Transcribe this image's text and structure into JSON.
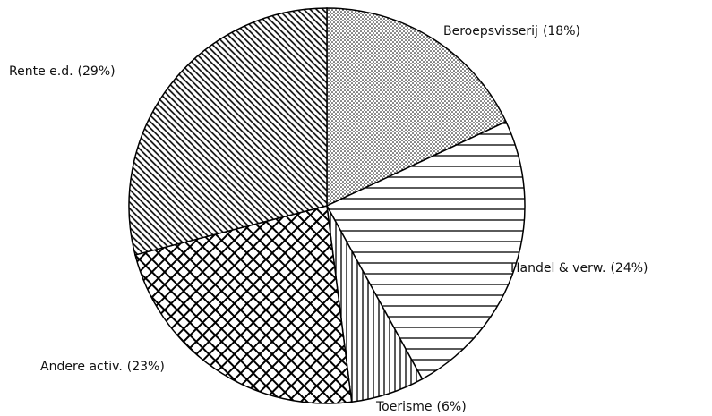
{
  "chart_data": {
    "type": "pie",
    "categories": [
      "Beroepsvisserij",
      "Handel & verw.",
      "Toerisme",
      "Andere activ.",
      "Rente e.d."
    ],
    "values": [
      18,
      24,
      6,
      23,
      29
    ],
    "value_labels": [
      "(18%)",
      "(24%)",
      "(6%)",
      "(23%)",
      "(29%)"
    ],
    "patterns": [
      "dots",
      "horizontal",
      "vertical",
      "crosshatch",
      "diagonal"
    ],
    "color": "#000000"
  }
}
